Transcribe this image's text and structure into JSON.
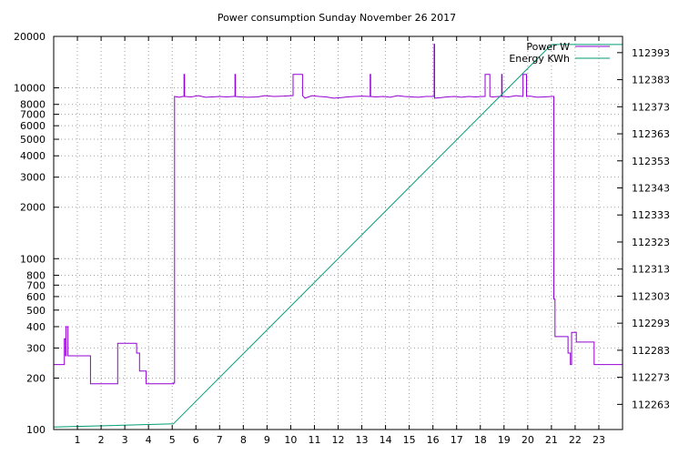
{
  "chart_data": {
    "type": "line",
    "title": "Power consumption Sunday November 26 2017",
    "xlabel": "",
    "ylabel": "",
    "y2label": "",
    "grid": true,
    "legend_position": "top-right",
    "x_range": [
      0,
      24
    ],
    "x_ticks": [
      "1",
      "2",
      "3",
      "4",
      "5",
      "6",
      "7",
      "8",
      "9",
      "10",
      "11",
      "12",
      "13",
      "14",
      "15",
      "16",
      "17",
      "18",
      "19",
      "20",
      "21",
      "22",
      "23"
    ],
    "y_scale": "log",
    "y_range": [
      100,
      20000
    ],
    "y_ticks": [
      "20000",
      "10000",
      "8000",
      "7000",
      "6000",
      "5000",
      "4000",
      "3000",
      "2000",
      "1000",
      "800",
      "700",
      "600",
      "500",
      "400",
      "300",
      "200",
      "100"
    ],
    "y2_range": [
      112253.7,
      112399
    ],
    "y2_ticks": [
      "112393",
      "112383",
      "112373",
      "112363",
      "112353",
      "112343",
      "112333",
      "112323",
      "112313",
      "112303",
      "112293",
      "112283",
      "112273",
      "112263"
    ],
    "series": [
      {
        "name": "Power W",
        "axis": "y",
        "color": "#9400d3",
        "x": [
          0,
          0.45,
          0.45,
          0.5,
          0.5,
          0.52,
          0.52,
          0.6,
          0.6,
          0.68,
          0.68,
          0.72,
          0.72,
          1.55,
          1.55,
          2.7,
          2.7,
          3.4,
          3.4,
          3.5,
          3.5,
          3.62,
          3.62,
          3.9,
          3.9,
          5.05,
          5.05,
          5.1,
          5.1,
          5.3,
          5.45,
          5.5,
          5.5,
          5.52,
          5.52,
          5.8,
          6.1,
          6.4,
          6.7,
          7.0,
          7.3,
          7.6,
          7.65,
          7.65,
          7.67,
          7.67,
          7.9,
          8.2,
          8.6,
          8.9,
          9.3,
          9.7,
          10.0,
          10.1,
          10.1,
          10.5,
          10.5,
          10.6,
          10.9,
          11.2,
          11.5,
          11.8,
          12.1,
          12.4,
          12.7,
          13.0,
          13.3,
          13.35,
          13.35,
          13.37,
          13.37,
          13.6,
          13.9,
          14.2,
          14.5,
          14.8,
          15.1,
          15.4,
          15.7,
          16.0,
          16.05,
          16.05,
          16.07,
          16.07,
          16.3,
          16.6,
          16.9,
          17.2,
          17.5,
          17.8,
          18.1,
          18.2,
          18.2,
          18.4,
          18.4,
          18.5,
          18.8,
          18.9,
          18.9,
          18.92,
          18.92,
          19.2,
          19.5,
          19.8,
          19.8,
          19.95,
          19.95,
          20.1,
          20.4,
          20.7,
          21.05,
          21.1,
          21.1,
          21.15,
          21.15,
          21.2,
          21.2,
          21.7,
          21.7,
          21.8,
          21.8,
          21.85,
          21.85,
          22.05,
          22.05,
          22.8,
          22.8,
          24.0
        ],
        "values": [
          240,
          240,
          340,
          340,
          270,
          270,
          400,
          400,
          270,
          270,
          270,
          270,
          270,
          270,
          185,
          185,
          320,
          320,
          320,
          320,
          280,
          280,
          220,
          220,
          185,
          185,
          187,
          187,
          8900,
          8800,
          8900,
          8900,
          12000,
          12000,
          8900,
          8850,
          9000,
          8800,
          8850,
          8900,
          8850,
          8900,
          8900,
          12000,
          12000,
          8900,
          8850,
          8800,
          8850,
          9000,
          8900,
          8950,
          9000,
          9000,
          12000,
          12000,
          9000,
          8700,
          9000,
          8900,
          8850,
          8700,
          8750,
          8850,
          8900,
          8950,
          8900,
          8900,
          12000,
          12000,
          8900,
          8850,
          8900,
          8800,
          9000,
          8900,
          8850,
          8800,
          8900,
          8900,
          8900,
          18000,
          18000,
          8700,
          8750,
          8850,
          8900,
          8800,
          8900,
          8850,
          8900,
          8900,
          12000,
          12000,
          8900,
          8850,
          8900,
          8900,
          12000,
          12000,
          8900,
          8850,
          9000,
          8900,
          12000,
          12000,
          8900,
          8950,
          8800,
          8850,
          8900,
          8900,
          580,
          580,
          350,
          350,
          350,
          350,
          280,
          280,
          240,
          240,
          370,
          370,
          325,
          325,
          240,
          240
        ]
      },
      {
        "name": "Energy KWh",
        "axis": "y2",
        "color": "#009e73",
        "x": [
          0,
          5.05,
          20.8,
          21.05,
          24.0
        ],
        "values": [
          112254.6,
          112255.8,
          112394.2,
          112396,
          112396
        ]
      }
    ]
  }
}
